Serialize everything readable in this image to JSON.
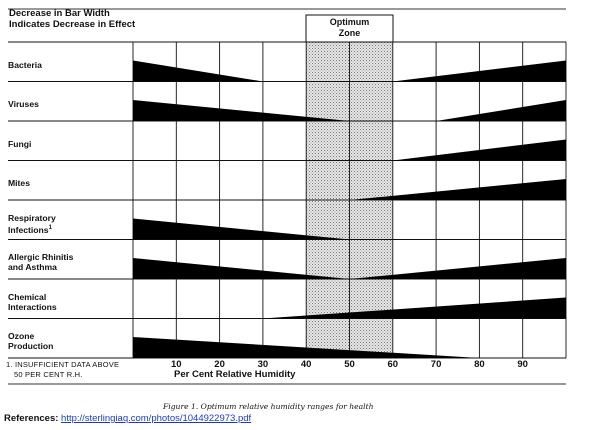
{
  "header": {
    "line1": "Decrease in Bar Width",
    "line2": "Indicates Decrease in Effect"
  },
  "optimum_zone": {
    "line1": "Optimum",
    "line2": "Zone"
  },
  "chart_data": {
    "type": "bar",
    "xlabel": "Per Cent Relative Humidity",
    "xlim": [
      0,
      100
    ],
    "x_ticks": [
      "10",
      "20",
      "30",
      "40",
      "50",
      "60",
      "70",
      "80",
      "90"
    ],
    "optimum_zone_range": [
      40,
      60
    ],
    "grid": true,
    "categories": [
      {
        "label": [
          "Bacteria"
        ],
        "bars": [
          {
            "from": 0,
            "to": 30,
            "widest_at": 0
          },
          {
            "from": 60,
            "to": 100,
            "widest_at": 100
          }
        ]
      },
      {
        "label": [
          "Viruses"
        ],
        "bars": [
          {
            "from": 0,
            "to": 50,
            "widest_at": 0
          },
          {
            "from": 70,
            "to": 100,
            "widest_at": 100
          }
        ]
      },
      {
        "label": [
          "Fungi"
        ],
        "bars": [
          {
            "from": 60,
            "to": 100,
            "widest_at": 100
          }
        ]
      },
      {
        "label": [
          "Mites"
        ],
        "bars": [
          {
            "from": 50,
            "to": 100,
            "widest_at": 100
          }
        ]
      },
      {
        "label": [
          "Respiratory",
          "Infections"
        ],
        "footnote_mark": "1",
        "bars": [
          {
            "from": 0,
            "to": 50,
            "widest_at": 0
          }
        ]
      },
      {
        "label": [
          "Allergic Rhinitis",
          "and Asthma"
        ],
        "bars": [
          {
            "from": 0,
            "to": 50,
            "widest_at": 0
          },
          {
            "from": 50,
            "to": 100,
            "widest_at": 100
          }
        ]
      },
      {
        "label": [
          "Chemical",
          "Interactions"
        ],
        "bars": [
          {
            "from": 30,
            "to": 100,
            "widest_at": 100
          }
        ]
      },
      {
        "label": [
          "Ozone",
          "Production"
        ],
        "bars": [
          {
            "from": 0,
            "to": 80,
            "widest_at": 0
          }
        ]
      }
    ]
  },
  "footnote": {
    "line1": "1. INSUFFICIENT DATA ABOVE",
    "line2": "50 PER CENT R.H."
  },
  "caption": "Figure 1.  Optimum relative humidity ranges for health",
  "references": {
    "label": "References:",
    "url_text": "http://sterlingiaq.com/photos/1044922973.pdf"
  }
}
